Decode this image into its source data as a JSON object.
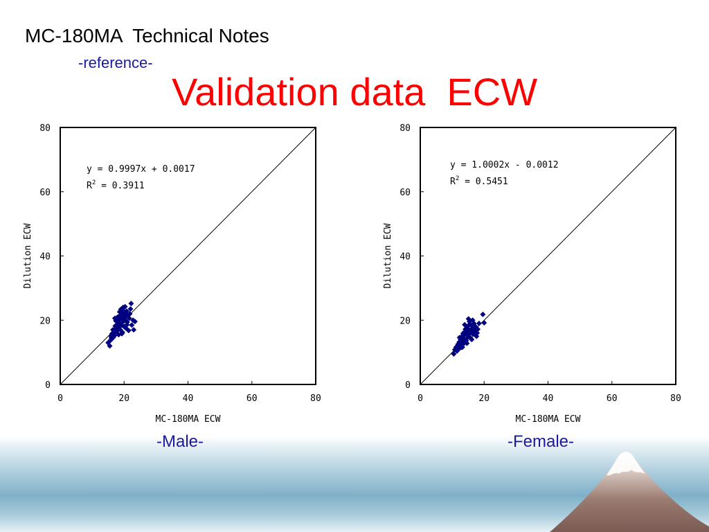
{
  "header": {
    "title": "MC-180MA  Technical Notes",
    "subtitle": "-reference-",
    "main_title": "Validation data  ECW"
  },
  "colors": {
    "marker": "#000080",
    "title": "#ff0000",
    "caption": "#1a1aa0"
  },
  "chart_data": [
    {
      "type": "scatter",
      "caption": "-Male-",
      "xlabel": "MC-180MA ECW",
      "ylabel": "Dilution ECW",
      "xlim": [
        0,
        80
      ],
      "ylim": [
        0,
        80
      ],
      "xticks": [
        "0",
        "20",
        "40",
        "60",
        "80"
      ],
      "yticks": [
        "0",
        "20",
        "40",
        "60",
        "80"
      ],
      "equation": "y = 0.9997x + 0.0017",
      "r2_prefix": "R",
      "r2_sup": "2",
      "r2_value": " = 0.3911",
      "identity_line": true,
      "grid": false,
      "points": [
        [
          15.0,
          13.0
        ],
        [
          15.5,
          12.0
        ],
        [
          16.0,
          14.5
        ],
        [
          16.2,
          15.8
        ],
        [
          16.5,
          17.0
        ],
        [
          16.8,
          16.0
        ],
        [
          17.0,
          15.2
        ],
        [
          17.2,
          18.2
        ],
        [
          17.5,
          17.5
        ],
        [
          17.6,
          16.4
        ],
        [
          17.8,
          19.6
        ],
        [
          18.0,
          21.0
        ],
        [
          18.0,
          18.8
        ],
        [
          18.2,
          17.8
        ],
        [
          18.3,
          15.5
        ],
        [
          18.5,
          20.2
        ],
        [
          18.6,
          22.6
        ],
        [
          18.8,
          17.0
        ],
        [
          18.9,
          19.0
        ],
        [
          19.0,
          23.4
        ],
        [
          19.1,
          21.6
        ],
        [
          19.2,
          18.4
        ],
        [
          19.4,
          20.4
        ],
        [
          19.5,
          16.2
        ],
        [
          19.6,
          22.2
        ],
        [
          19.8,
          19.6
        ],
        [
          20.0,
          18.0
        ],
        [
          20.1,
          21.0
        ],
        [
          20.3,
          24.2
        ],
        [
          20.4,
          20.0
        ],
        [
          20.6,
          17.5
        ],
        [
          20.8,
          22.8
        ],
        [
          21.0,
          19.4
        ],
        [
          21.2,
          21.6
        ],
        [
          21.4,
          16.8
        ],
        [
          21.6,
          20.6
        ],
        [
          22.0,
          23.5
        ],
        [
          22.4,
          18.5
        ],
        [
          22.8,
          20.0
        ],
        [
          23.0,
          17.0
        ],
        [
          22.2,
          25.2
        ],
        [
          23.4,
          19.6
        ],
        [
          17.4,
          19.8
        ],
        [
          16.6,
          14.6
        ],
        [
          19.7,
          24.0
        ],
        [
          18.4,
          20.8
        ],
        [
          20.9,
          18.6
        ],
        [
          17.9,
          17.0
        ],
        [
          16.0,
          15.0
        ],
        [
          19.3,
          15.8
        ],
        [
          21.8,
          22.0
        ],
        [
          15.8,
          13.8
        ],
        [
          17.1,
          20.6
        ],
        [
          20.6,
          21.8
        ],
        [
          18.7,
          21.4
        ],
        [
          19.9,
          22.8
        ]
      ]
    },
    {
      "type": "scatter",
      "caption": "-Female-",
      "xlabel": "MC-180MA ECW",
      "ylabel": "Dilution ECW",
      "xlim": [
        0,
        80
      ],
      "ylim": [
        0,
        80
      ],
      "xticks": [
        "0",
        "20",
        "40",
        "60",
        "80"
      ],
      "yticks": [
        "0",
        "20",
        "40",
        "60",
        "80"
      ],
      "equation": "y = 1.0002x - 0.0012",
      "r2_prefix": "R",
      "r2_sup": "2",
      "r2_value": " = 0.5451",
      "identity_line": true,
      "grid": false,
      "points": [
        [
          10.5,
          9.5
        ],
        [
          10.8,
          10.8
        ],
        [
          11.2,
          11.6
        ],
        [
          11.5,
          10.4
        ],
        [
          11.8,
          12.5
        ],
        [
          12.0,
          11.0
        ],
        [
          12.2,
          13.2
        ],
        [
          12.4,
          12.0
        ],
        [
          12.6,
          14.0
        ],
        [
          12.8,
          11.5
        ],
        [
          13.0,
          13.8
        ],
        [
          13.1,
          15.0
        ],
        [
          13.3,
          12.4
        ],
        [
          13.5,
          16.0
        ],
        [
          13.6,
          14.4
        ],
        [
          13.8,
          13.0
        ],
        [
          14.0,
          15.6
        ],
        [
          14.1,
          17.2
        ],
        [
          14.3,
          14.0
        ],
        [
          14.5,
          16.6
        ],
        [
          14.6,
          12.8
        ],
        [
          14.8,
          18.0
        ],
        [
          15.0,
          15.0
        ],
        [
          15.2,
          17.0
        ],
        [
          15.4,
          19.6
        ],
        [
          15.6,
          16.0
        ],
        [
          15.8,
          14.4
        ],
        [
          16.0,
          18.4
        ],
        [
          16.2,
          17.4
        ],
        [
          16.5,
          15.6
        ],
        [
          16.8,
          19.0
        ],
        [
          17.0,
          16.6
        ],
        [
          17.3,
          18.0
        ],
        [
          17.6,
          15.0
        ],
        [
          18.0,
          17.2
        ],
        [
          18.4,
          19.0
        ],
        [
          19.6,
          21.8
        ],
        [
          20.0,
          19.2
        ],
        [
          15.1,
          20.4
        ],
        [
          13.9,
          18.6
        ],
        [
          12.9,
          12.6
        ],
        [
          14.4,
          13.6
        ],
        [
          16.4,
          20.0
        ],
        [
          11.9,
          11.8
        ],
        [
          13.4,
          15.8
        ],
        [
          15.9,
          16.8
        ],
        [
          17.8,
          16.0
        ],
        [
          12.3,
          14.6
        ],
        [
          14.7,
          15.4
        ],
        [
          16.1,
          14.0
        ],
        [
          13.2,
          11.6
        ],
        [
          15.5,
          18.8
        ]
      ]
    }
  ]
}
